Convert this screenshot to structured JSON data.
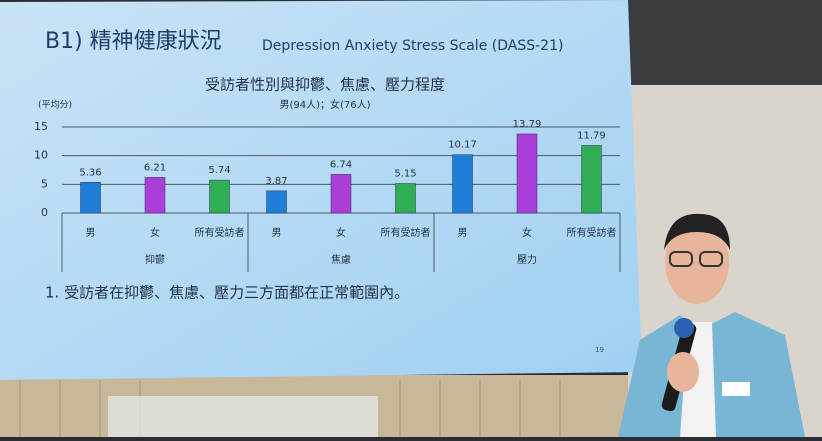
{
  "slide": {
    "heading": "B1) 精神健康狀況",
    "heading_sub": "Depression Anxiety Stress Scale (DASS-21)",
    "note": "1.  受訪者在抑鬱、焦慮、壓力三方面都在正常範圍內。",
    "page": "19"
  },
  "chart_data": {
    "type": "bar",
    "title": "受訪者性別與抑鬱、焦慮、壓力程度",
    "subtitle": "男(94人)；女(76人)",
    "y_label": "(平均分)",
    "categories": [
      "抑鬱",
      "焦慮",
      "壓力"
    ],
    "series": [
      {
        "name": "男",
        "color": "#1f7fd6",
        "values": [
          5.36,
          3.87,
          10.17
        ]
      },
      {
        "name": "女",
        "color": "#a93fd8",
        "values": [
          6.21,
          6.74,
          13.79
        ]
      },
      {
        "name": "所有受訪者",
        "color": "#2fae55",
        "values": [
          5.74,
          5.15,
          11.79
        ]
      }
    ],
    "ylim": [
      0,
      15
    ],
    "yticks": [
      0,
      5,
      10,
      15
    ],
    "grid": true
  }
}
